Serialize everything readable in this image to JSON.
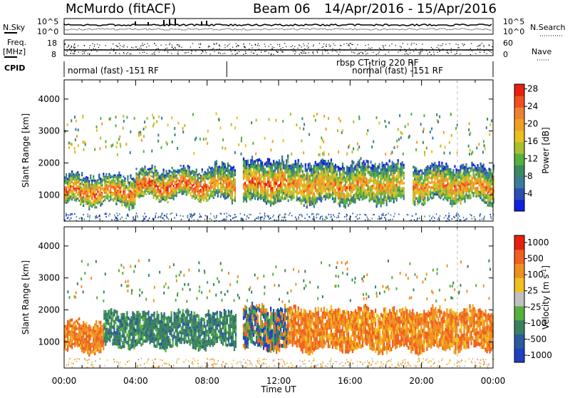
{
  "header": {
    "station": "McMurdo (fitACF)",
    "beam": "Beam 06",
    "date_range": "14/Apr/2016 - 15/Apr/2016"
  },
  "top_panels": {
    "nsky_label": "N.Sky",
    "nsearch_label": "N.Search",
    "nsky_ticks": [
      "10^5",
      "10^0"
    ],
    "nsearch_ticks": [
      "10^5",
      "10^0"
    ],
    "freq_label_1": "Freq.",
    "freq_label_2": "[MHz]",
    "freq_ticks": [
      "18",
      "8"
    ],
    "nave_label": "Nave",
    "nave_ticks": [
      "60",
      "0"
    ],
    "cpid_label": "CPID",
    "cpid_segments": [
      {
        "label": "normal (fast) -151 RF",
        "start": 0,
        "end": 9.1
      },
      {
        "label": "rbsp CT-trig 220 RF",
        "start": 17.1,
        "end": 24
      },
      {
        "label": "normal (fast) -151 RF",
        "start": 19.5,
        "end": 24
      }
    ]
  },
  "chart_data": [
    {
      "type": "heatmap",
      "name": "power",
      "ylabel": "Slant Range [km]",
      "ylim": [
        180,
        4600
      ],
      "yticks": [
        1000,
        2000,
        3000,
        4000
      ],
      "xlim": [
        0,
        24
      ],
      "colorbar": {
        "label": "Power [dB]",
        "ticks": [
          4,
          8,
          12,
          16,
          20,
          24,
          28
        ],
        "colors": [
          "#1020e0",
          "#2a4fb0",
          "#3c7a9a",
          "#3a8a60",
          "#55b040",
          "#a8c030",
          "#e8c020",
          "#f0a020",
          "#f08030",
          "#f05020",
          "#e82010"
        ]
      },
      "bands": [
        {
          "t0": 0.0,
          "t1": 4.0,
          "r0": 700,
          "r1": 1600,
          "intensity": 0.9
        },
        {
          "t0": 4.0,
          "t1": 8.0,
          "r0": 900,
          "r1": 1800,
          "intensity": 0.95
        },
        {
          "t0": 8.0,
          "t1": 9.6,
          "r0": 850,
          "r1": 1900,
          "intensity": 0.8
        },
        {
          "t0": 10.0,
          "t1": 12.5,
          "r0": 800,
          "r1": 2100,
          "intensity": 0.85
        },
        {
          "t0": 12.5,
          "t1": 16.0,
          "r0": 750,
          "r1": 2000,
          "intensity": 0.8
        },
        {
          "t0": 16.0,
          "t1": 19.0,
          "r0": 750,
          "r1": 2000,
          "intensity": 0.75
        },
        {
          "t0": 19.5,
          "t1": 24.0,
          "r0": 800,
          "r1": 1900,
          "intensity": 0.8
        }
      ]
    },
    {
      "type": "heatmap",
      "name": "velocity",
      "ylabel": "Slant Range [km]",
      "xlabel": "Time UT",
      "ylim": [
        180,
        4600
      ],
      "yticks": [
        1000,
        2000,
        3000,
        4000
      ],
      "xlim": [
        0,
        24
      ],
      "xticks": [
        "00:00",
        "04:00",
        "08:00",
        "12:00",
        "16:00",
        "20:00",
        "00:00"
      ],
      "colorbar": {
        "label": "Velocity [m s^-1]",
        "ticks": [
          1000,
          500,
          100,
          25,
          -25,
          -100,
          -500,
          -1000
        ],
        "colors": [
          "#2040c0",
          "#2a5aa0",
          "#3a8060",
          "#55b040",
          "#c0c0c0",
          "#f0c020",
          "#f09020",
          "#f06020",
          "#e82010"
        ]
      },
      "bands": [
        {
          "t0": 0.0,
          "t1": 2.2,
          "r0": 700,
          "r1": 1600,
          "kind": "orange"
        },
        {
          "t0": 2.2,
          "t1": 9.6,
          "r0": 850,
          "r1": 1900,
          "kind": "green"
        },
        {
          "t0": 10.0,
          "t1": 12.5,
          "r0": 800,
          "r1": 2100,
          "kind": "mixed"
        },
        {
          "t0": 12.5,
          "t1": 24.0,
          "r0": 750,
          "r1": 2000,
          "kind": "orange"
        }
      ]
    }
  ]
}
